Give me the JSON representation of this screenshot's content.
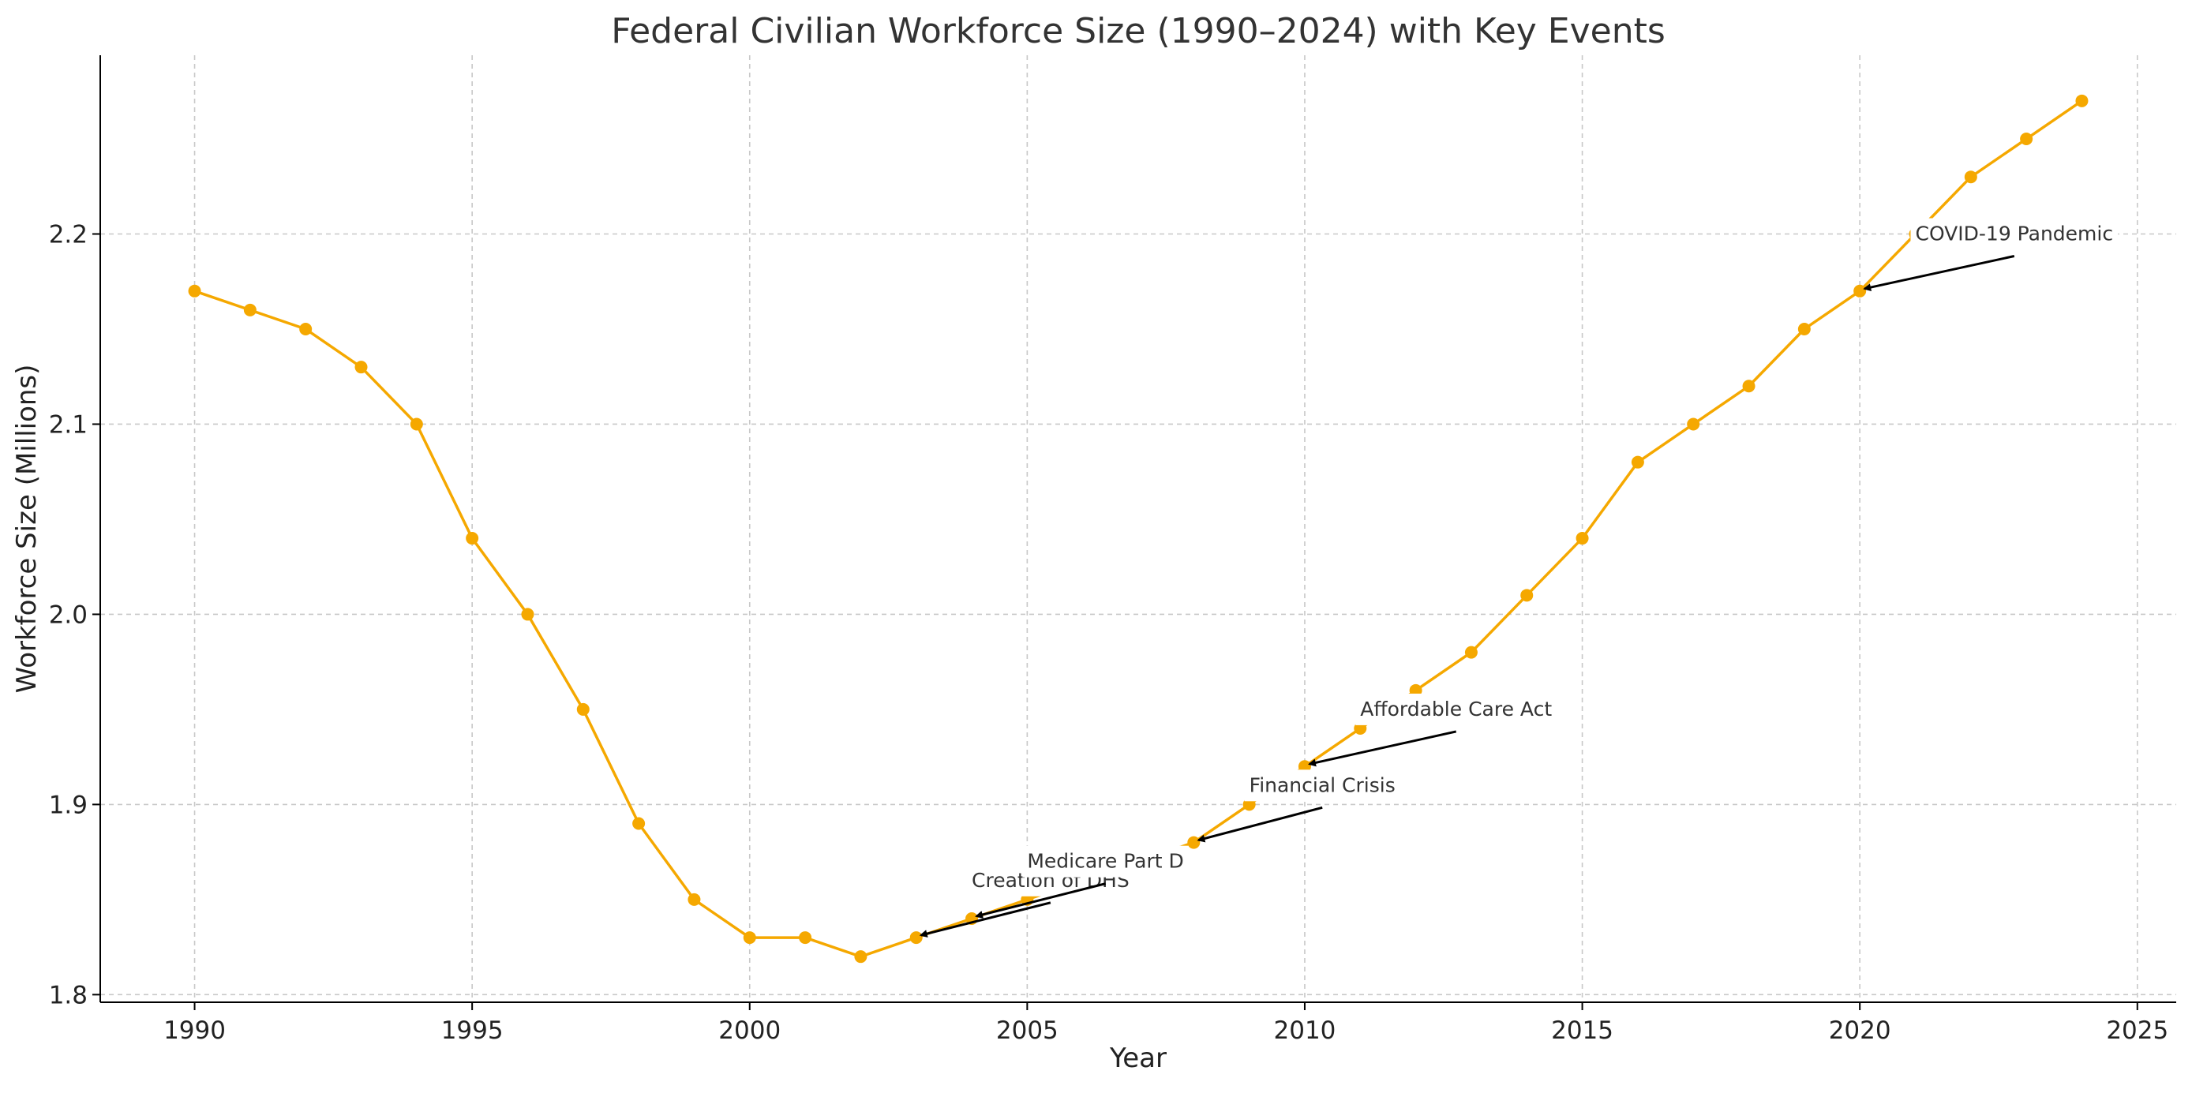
{
  "chart_data": {
    "type": "line",
    "title": "Federal Civilian Workforce Size (1990–2024) with Key Events",
    "xlabel": "Year",
    "ylabel": "Workforce Size (Millions)",
    "xlim": [
      1988.3,
      2025.7
    ],
    "ylim": [
      1.796,
      2.294
    ],
    "xticks": [
      1990,
      1995,
      2000,
      2005,
      2010,
      2015,
      2020,
      2025
    ],
    "yticks": [
      1.8,
      1.9,
      2.0,
      2.1,
      2.2
    ],
    "ytick_labels": [
      "1.8",
      "1.9",
      "2.0",
      "2.1",
      "2.2"
    ],
    "grid": true,
    "color": "#f5a800",
    "series": [
      {
        "x": [
          1990,
          1991,
          1992,
          1993,
          1994,
          1995,
          1996,
          1997,
          1998,
          1999,
          2000,
          2001,
          2002,
          2003,
          2004,
          2005,
          2006,
          2007,
          2008,
          2009,
          2010,
          2011,
          2012,
          2013,
          2014,
          2015,
          2016,
          2017,
          2018,
          2019,
          2020,
          2021,
          2022,
          2023,
          2024
        ],
        "values": [
          2.17,
          2.16,
          2.15,
          2.13,
          2.1,
          2.04,
          2.0,
          1.95,
          1.89,
          1.85,
          1.83,
          1.83,
          1.82,
          1.83,
          1.84,
          1.85,
          1.86,
          1.87,
          1.88,
          1.9,
          1.92,
          1.94,
          1.96,
          1.98,
          2.01,
          2.04,
          2.08,
          2.1,
          2.12,
          2.15,
          2.17,
          2.2,
          2.23,
          2.25,
          2.27
        ]
      }
    ],
    "annotations": [
      {
        "label": "Creation of DHS",
        "x": 2003,
        "y": 1.83,
        "text_x": 2004,
        "text_y": 1.86
      },
      {
        "label": "Medicare Part D",
        "x": 2004,
        "y": 1.84,
        "text_x": 2005,
        "text_y": 1.87
      },
      {
        "label": "Financial Crisis",
        "x": 2008,
        "y": 1.88,
        "text_x": 2009,
        "text_y": 1.91
      },
      {
        "label": "Affordable Care Act",
        "x": 2010,
        "y": 1.92,
        "text_x": 2011,
        "text_y": 1.95
      },
      {
        "label": "COVID-19 Pandemic",
        "x": 2020,
        "y": 2.17,
        "text_x": 2021,
        "text_y": 2.2
      }
    ]
  }
}
